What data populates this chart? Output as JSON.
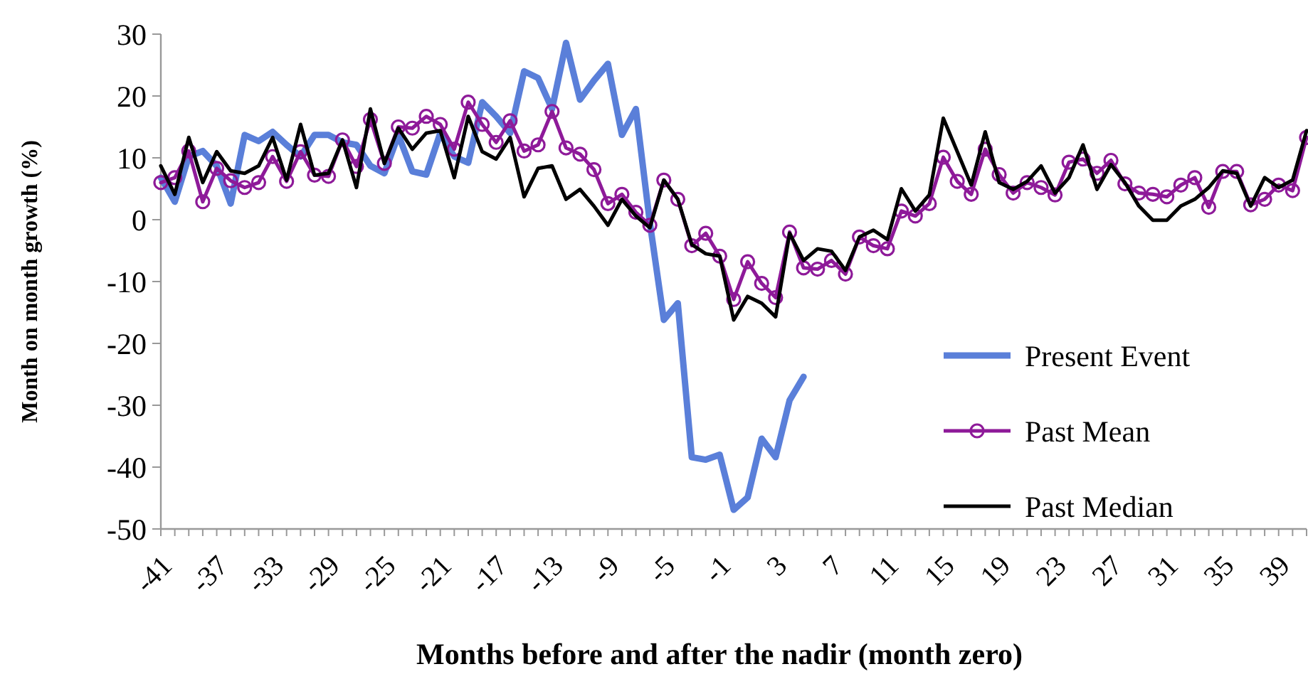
{
  "chart_data": {
    "type": "line",
    "xlabel": "Months before and after the nadir (month zero)",
    "ylabel": "Month on month growth (%)",
    "categories": [
      "-41",
      null,
      null,
      null,
      "-37",
      null,
      null,
      null,
      "-33",
      null,
      null,
      null,
      "-29",
      null,
      null,
      null,
      "-25",
      null,
      null,
      null,
      "-21",
      null,
      null,
      null,
      "-17",
      null,
      null,
      null,
      "-13",
      null,
      null,
      null,
      "-9",
      null,
      null,
      null,
      "-5",
      null,
      null,
      null,
      "-1",
      null,
      null,
      null,
      "3",
      null,
      null,
      null,
      "7",
      null,
      null,
      null,
      "11",
      null,
      null,
      null,
      "15",
      null,
      null,
      null,
      "19",
      null,
      null,
      null,
      "23",
      null,
      null,
      null,
      "27",
      null,
      null,
      null,
      "31",
      null,
      null,
      null,
      "35",
      null,
      null,
      null,
      "39",
      null,
      null
    ],
    "ylim": [
      -50,
      30
    ],
    "yticks": [
      -50,
      -40,
      -30,
      -20,
      -10,
      0,
      10,
      20,
      30
    ],
    "grid": false,
    "legend": "bottom right",
    "series": [
      {
        "name": "Present Event",
        "color": "#5a7fd9",
        "marker": "none",
        "values": [
          6.8,
          2.9,
          10.2,
          11.1,
          8.7,
          2.6,
          13.7,
          12.7,
          14.2,
          12.1,
          10.2,
          13.7,
          13.7,
          12.5,
          12.1,
          8.7,
          7.5,
          13.7,
          7.8,
          7.3,
          14,
          10.2,
          9.2,
          19,
          16.7,
          14,
          24,
          22.9,
          17.9,
          28.6,
          19.4,
          22.5,
          25.2,
          13.7,
          17.9,
          -0.5,
          -16.2,
          -13.5,
          -38.4,
          -38.8,
          -38,
          -46.9,
          -44.9,
          -35.4,
          -38.4,
          -29.2,
          -25.4,
          null,
          null,
          null,
          null,
          null,
          null,
          null,
          null,
          null,
          null,
          null,
          null,
          null,
          null,
          null,
          null,
          null,
          null,
          null,
          null,
          null,
          null,
          null,
          null,
          null,
          null,
          null,
          null,
          null,
          null,
          null,
          null,
          null,
          null,
          null,
          null
        ]
      },
      {
        "name": "Past Mean",
        "color": "#8e1a99",
        "marker": "circle",
        "values": [
          6.0,
          6.8,
          11.1,
          2.9,
          8.3,
          6.3,
          5.2,
          6.0,
          10.2,
          6.2,
          11.0,
          7.2,
          7.0,
          12.9,
          8.6,
          16.2,
          9.1,
          15.0,
          14.8,
          16.7,
          15.4,
          11.4,
          19.0,
          15.4,
          12.5,
          16.0,
          11.1,
          12.1,
          17.5,
          11.6,
          10.6,
          8.1,
          2.6,
          4.1,
          1.2,
          -0.9,
          6.4,
          3.3,
          -4.2,
          -2.2,
          -5.9,
          -12.9,
          -6.8,
          -10.3,
          -12.6,
          -2.0,
          -7.8,
          -8.0,
          -6.6,
          -8.8,
          -2.8,
          -4.2,
          -4.7,
          1.4,
          0.6,
          2.6,
          10.1,
          6.2,
          4.1,
          11.4,
          7.3,
          4.3,
          6.0,
          5.2,
          4.0,
          9.3,
          9.8,
          7.5,
          9.6,
          5.8,
          4.3,
          4.1,
          3.7,
          5.6,
          6.8,
          2.0,
          7.8,
          7.8,
          2.4,
          3.3,
          5.6,
          4.7,
          13.3
        ]
      },
      {
        "name": "Past Median",
        "color": "#000000",
        "marker": "none",
        "values": [
          8.7,
          4.1,
          13.3,
          6.0,
          11.0,
          7.9,
          7.5,
          8.7,
          13.3,
          6.4,
          15.4,
          7.2,
          7.5,
          12.9,
          5.2,
          17.9,
          9.1,
          14.8,
          11.4,
          14.0,
          14.4,
          6.8,
          16.7,
          11.0,
          9.8,
          13.3,
          3.7,
          8.3,
          8.7,
          3.3,
          4.9,
          2.2,
          -0.9,
          3.3,
          0.6,
          -1.3,
          6.4,
          3.3,
          -4.0,
          -5.5,
          -5.9,
          -16.2,
          -12.4,
          -13.5,
          -15.7,
          -2.2,
          -6.6,
          -4.7,
          -5.1,
          -8.2,
          -2.8,
          -1.7,
          -3.2,
          5.0,
          1.4,
          4.0,
          16.4,
          11.0,
          5.6,
          14.2,
          6.0,
          4.9,
          6.2,
          8.7,
          4.3,
          6.8,
          12.1,
          4.9,
          8.9,
          6.0,
          2.2,
          -0.1,
          -0.1,
          2.2,
          3.3,
          5.2,
          7.9,
          7.5,
          2.2,
          6.8,
          5.2,
          6.4,
          14.4
        ]
      }
    ]
  }
}
